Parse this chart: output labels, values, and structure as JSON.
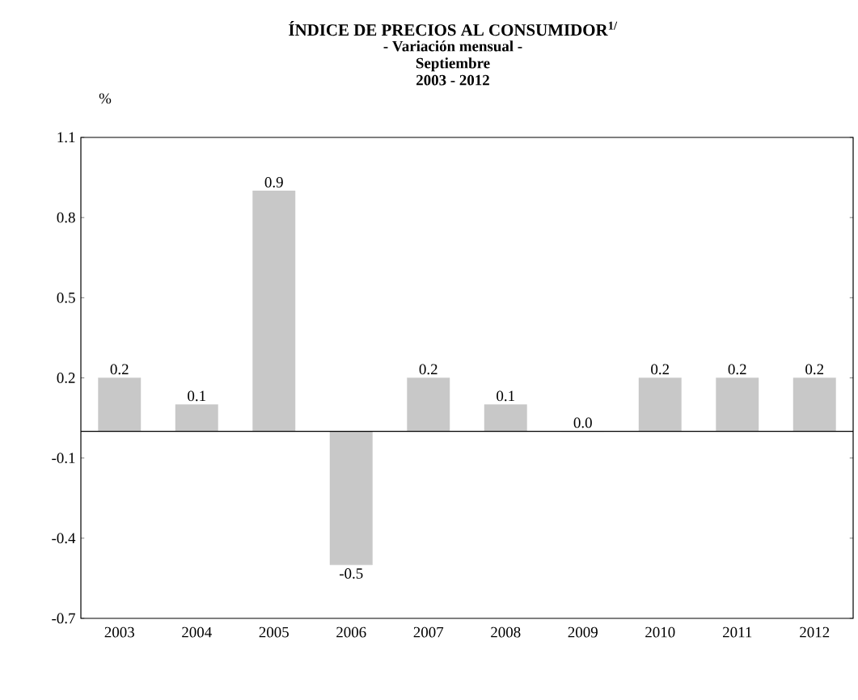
{
  "chart_data": {
    "type": "bar",
    "title": "ÍNDICE DE PRECIOS AL CONSUMIDOR$^{1/}$",
    "subtitle": "- Variación mensual -\nSeptiembre\n2003 - 2012",
    "ylabel": "%",
    "categories": [
      "2003",
      "2004",
      "2005",
      "2006",
      "2007",
      "2008",
      "2009",
      "2010",
      "2011",
      "2012"
    ],
    "values": [
      0.2,
      0.1,
      0.9,
      -0.5,
      0.2,
      0.1,
      0.0,
      0.2,
      0.2,
      0.2
    ],
    "value_labels": [
      "0.2",
      "0.1",
      "0.9",
      "-0.5",
      "0.2",
      "0.1",
      "0.0",
      "0.2",
      "0.2",
      "0.2"
    ],
    "color": "#c8c8c8",
    "ylim": [
      -0.7,
      1.1
    ],
    "yticks": [
      -0.7,
      -0.4,
      -0.1,
      0.2,
      0.5,
      0.8,
      1.1
    ],
    "grid": false
  }
}
